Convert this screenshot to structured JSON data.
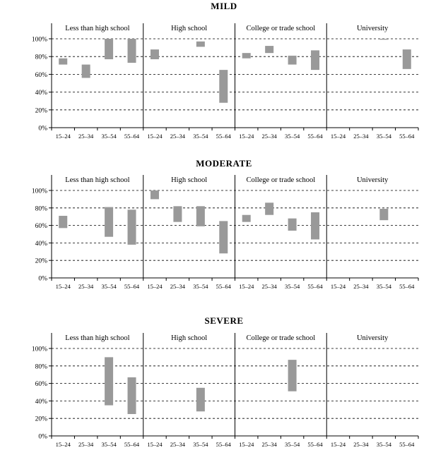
{
  "chart_data": [
    {
      "type": "bar",
      "title": "MILD",
      "subtype": "floating-range",
      "groups": [
        "Less than high school",
        "High school",
        "College or trade school",
        "University"
      ],
      "categories": [
        "15–24",
        "25–34",
        "35–54",
        "55–64"
      ],
      "yticks": [
        "0%",
        "20%",
        "40%",
        "60%",
        "80%",
        "100%"
      ],
      "ylim": [
        0,
        100
      ],
      "grid": "dashed horizontal",
      "bar_color": "#999999",
      "ranges": [
        [
          [
            71,
            78
          ],
          [
            56,
            71
          ],
          [
            77,
            100
          ],
          [
            73,
            100
          ]
        ],
        [
          [
            77,
            88
          ],
          null,
          [
            91,
            97
          ],
          [
            28,
            65
          ]
        ],
        [
          [
            78,
            84
          ],
          [
            84,
            92
          ],
          [
            71,
            81
          ],
          [
            65,
            87
          ]
        ],
        [
          null,
          null,
          [
            99,
            100
          ],
          [
            66,
            88
          ]
        ]
      ]
    },
    {
      "type": "bar",
      "title": "MODERATE",
      "subtype": "floating-range",
      "groups": [
        "Less than high school",
        "High school",
        "College or trade school",
        "University"
      ],
      "categories": [
        "15–24",
        "25–34",
        "35–54",
        "55–64"
      ],
      "yticks": [
        "0%",
        "20%",
        "40%",
        "60%",
        "80%",
        "100%"
      ],
      "ylim": [
        0,
        100
      ],
      "grid": "dashed horizontal",
      "bar_color": "#999999",
      "ranges": [
        [
          [
            57,
            71
          ],
          null,
          [
            47,
            81
          ],
          [
            38,
            78
          ]
        ],
        [
          [
            90,
            100
          ],
          [
            64,
            82
          ],
          [
            59,
            82
          ],
          [
            28,
            65
          ]
        ],
        [
          [
            64,
            72
          ],
          [
            72,
            86
          ],
          [
            54,
            68
          ],
          [
            44,
            75
          ]
        ],
        [
          null,
          null,
          [
            66,
            79
          ],
          null
        ]
      ]
    },
    {
      "type": "bar",
      "title": "SEVERE",
      "subtype": "floating-range",
      "groups": [
        "Less than high school",
        "High school",
        "College or trade school",
        "University"
      ],
      "categories": [
        "15–24",
        "25–34",
        "35–54",
        "55–64"
      ],
      "yticks": [
        "0%",
        "20%",
        "40%",
        "60%",
        "80%",
        "100%"
      ],
      "ylim": [
        0,
        100
      ],
      "grid": "dashed horizontal",
      "bar_color": "#999999",
      "ranges": [
        [
          null,
          null,
          [
            35,
            90
          ],
          [
            25,
            67
          ]
        ],
        [
          null,
          null,
          [
            28,
            55
          ],
          null
        ],
        [
          null,
          null,
          [
            51,
            87
          ],
          null
        ],
        [
          null,
          null,
          null,
          null
        ]
      ]
    }
  ]
}
